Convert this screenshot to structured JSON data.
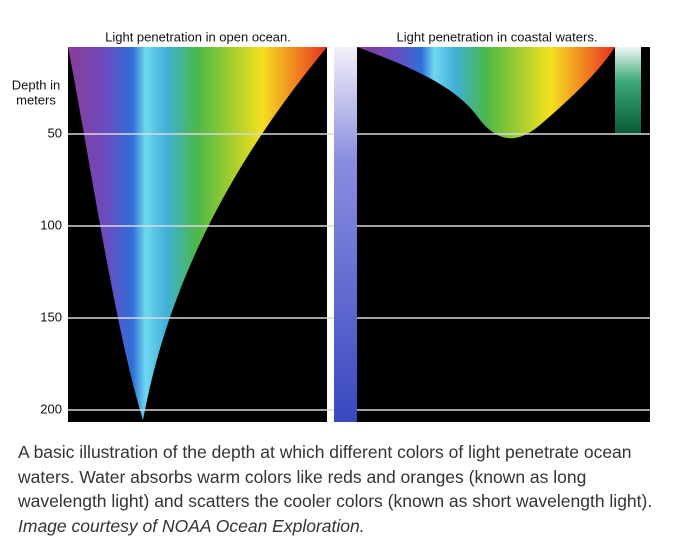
{
  "panels": [
    {
      "title": "Light penetration in open ocean."
    },
    {
      "title": "Light penetration in coastal waters."
    }
  ],
  "axis": {
    "label_lines": [
      "Depth in",
      "meters"
    ],
    "ticks": [
      50,
      100,
      150,
      200
    ]
  },
  "caption": {
    "text": "A basic illustration of the depth at which different colors of light penetrate ocean waters. Water absorbs warm colors like reds and oranges (known as long wavelength light) and scatters the cooler colors (known as short wavelength light).",
    "credit": "Image courtesy of NOAA Ocean Exploration."
  }
}
